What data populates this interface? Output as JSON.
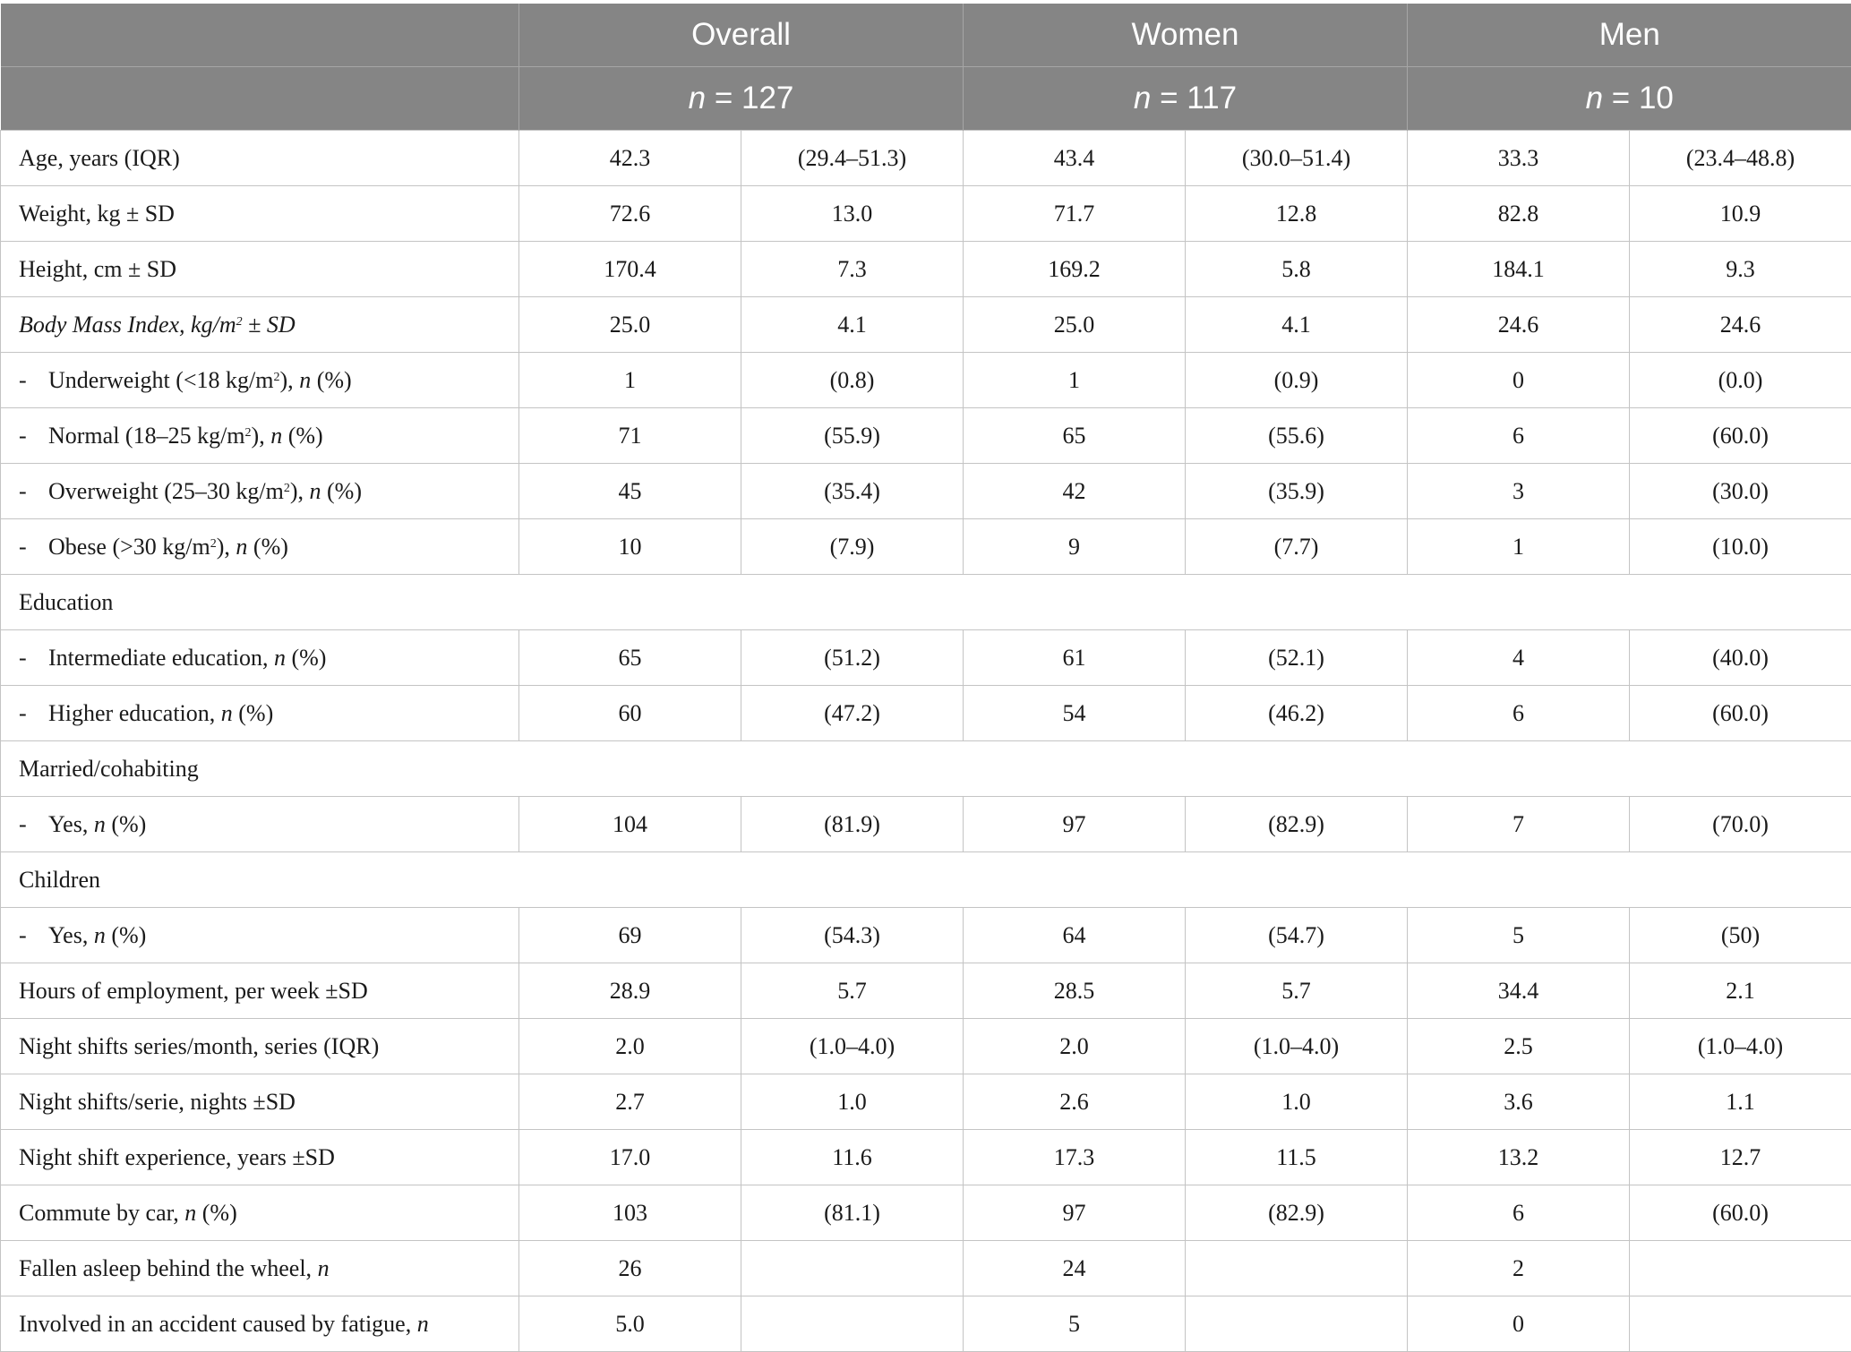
{
  "header": {
    "groups": [
      "Overall",
      "Women",
      "Men"
    ],
    "n_var": "n",
    "n_values": [
      "= 127",
      "= 117",
      "= 10"
    ]
  },
  "rows": [
    {
      "label": "Age, years (IQR)",
      "values": [
        "42.3",
        "(29.4–51.3)",
        "43.4",
        "(30.0–51.4)",
        "33.3",
        "(23.4–48.8)"
      ]
    },
    {
      "label": "Weight, kg ± SD",
      "values": [
        "72.6",
        "13.0",
        "71.7",
        "12.8",
        "82.8",
        "10.9"
      ]
    },
    {
      "label": "Height, cm ± SD",
      "values": [
        "170.4",
        "7.3",
        "169.2",
        "5.8",
        "184.1",
        "9.3"
      ]
    },
    {
      "label_prefix": "Body Mass Index, kg/m",
      "label_sup": "2",
      "label_suffix": " ± SD",
      "values": [
        "25.0",
        "4.1",
        "25.0",
        "4.1",
        "24.6",
        "24.6"
      ]
    },
    {
      "dash": "-",
      "label_prefix": "Underweight (<18 kg/m",
      "label_sup": "2",
      "label_suffix": "), ",
      "n_var": "n",
      "label_end": " (%)",
      "values": [
        "1",
        "(0.8)",
        "1",
        "(0.9)",
        "0",
        "(0.0)"
      ]
    },
    {
      "dash": "-",
      "label_prefix": "Normal (18–25 kg/m",
      "label_sup": "2",
      "label_suffix": "), ",
      "n_var": "n",
      "label_end": " (%)",
      "values": [
        "71",
        "(55.9)",
        "65",
        "(55.6)",
        "6",
        "(60.0)"
      ]
    },
    {
      "dash": "-",
      "label_prefix": "Overweight (25–30 kg/m",
      "label_sup": "2",
      "label_suffix": "), ",
      "n_var": "n",
      "label_end": " (%)",
      "values": [
        "45",
        "(35.4)",
        "42",
        "(35.9)",
        "3",
        "(30.0)"
      ]
    },
    {
      "dash": "-",
      "label_prefix": "Obese (>30 kg/m",
      "label_sup": "2",
      "label_suffix": "), ",
      "n_var": "n",
      "label_end": " (%)",
      "values": [
        "10",
        "(7.9)",
        "9",
        "(7.7)",
        "1",
        "(10.0)"
      ]
    },
    {
      "section": "Education"
    },
    {
      "dash": "-",
      "label_prefix": "Intermediate education, ",
      "n_var": "n",
      "label_end": " (%)",
      "values": [
        "65",
        "(51.2)",
        "61",
        "(52.1)",
        "4",
        "(40.0)"
      ]
    },
    {
      "dash": "-",
      "label_prefix": "Higher education, ",
      "n_var": "n",
      "label_end": " (%)",
      "values": [
        "60",
        "(47.2)",
        "54",
        "(46.2)",
        "6",
        "(60.0)"
      ]
    },
    {
      "section": "Married/cohabiting"
    },
    {
      "dash": "-",
      "label_prefix": "Yes, ",
      "n_var": "n",
      "label_end": " (%)",
      "values": [
        "104",
        "(81.9)",
        "97",
        "(82.9)",
        "7",
        "(70.0)"
      ]
    },
    {
      "section": "Children"
    },
    {
      "dash": "-",
      "label_prefix": "Yes, ",
      "n_var": "n",
      "label_end": " (%)",
      "values": [
        "69",
        "(54.3)",
        "64",
        "(54.7)",
        "5",
        "(50)"
      ]
    },
    {
      "label": "Hours of employment, per week ±SD",
      "values": [
        "28.9",
        "5.7",
        "28.5",
        "5.7",
        "34.4",
        "2.1"
      ]
    },
    {
      "label": "Night shifts series/month, series (IQR)",
      "values": [
        "2.0",
        "(1.0–4.0)",
        "2.0",
        "(1.0–4.0)",
        "2.5",
        "(1.0–4.0)"
      ]
    },
    {
      "label": "Night shifts/serie, nights ±SD",
      "values": [
        "2.7",
        "1.0",
        "2.6",
        "1.0",
        "3.6",
        "1.1"
      ]
    },
    {
      "label": "Night shift experience, years ±SD",
      "values": [
        "17.0",
        "11.6",
        "17.3",
        "11.5",
        "13.2",
        "12.7"
      ]
    },
    {
      "label_prefix": "Commute by car, ",
      "n_var": "n",
      "label_end": " (%)",
      "values": [
        "103",
        "(81.1)",
        "97",
        "(82.9)",
        "6",
        "(60.0)"
      ]
    },
    {
      "label_prefix": "Fallen asleep behind the wheel, ",
      "n_var": "n",
      "values": [
        "26",
        "",
        "24",
        "",
        "2",
        ""
      ]
    },
    {
      "label_prefix": "Involved in an accident caused by fatigue, ",
      "n_var": "n",
      "values": [
        "5.0",
        "",
        "5",
        "",
        "0",
        ""
      ]
    }
  ]
}
